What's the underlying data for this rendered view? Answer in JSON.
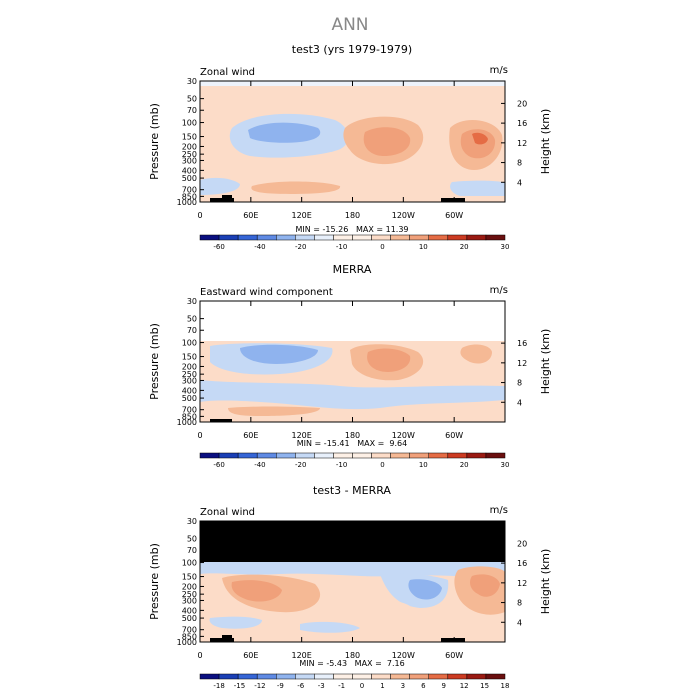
{
  "title": "ANN",
  "colors": {
    "panel_bg": "#ffffff",
    "mask": "#000000",
    "orange_pos": "#f0a07a",
    "peach_pos": "#fcdcc8",
    "light_blue_neg": "#c5d9f5",
    "blue_neg": "#8fb3ee"
  },
  "chart_data": [
    {
      "type": "heatmap",
      "title": "test3 (yrs 1979-1979)",
      "corner_left": "Zonal wind",
      "corner_right": "m/s",
      "ylabel": "Pressure (mb)",
      "ylabel_right": "Height (km)",
      "x_ticks": [
        "0",
        "60E",
        "120E",
        "180",
        "120W",
        "60W"
      ],
      "x_range": [
        0,
        360
      ],
      "y_ticks_pressure": [
        "30",
        "50",
        "70",
        "100",
        "150",
        "200",
        "250",
        "300",
        "400",
        "500",
        "700",
        "850",
        "1000"
      ],
      "y_ticks_height": [
        "20",
        "16",
        "12",
        "8",
        "4"
      ],
      "ylim_pressure": [
        1000,
        30
      ],
      "stats": "MIN = -15.26   MAX = 11.39",
      "colorbar_labels": [
        "-60",
        "-40",
        "-20",
        "-10",
        "0",
        "10",
        "20",
        "30"
      ]
    },
    {
      "type": "heatmap",
      "title": "MERRA",
      "corner_left": "Eastward wind component",
      "corner_right": "m/s",
      "ylabel": "Pressure (mb)",
      "ylabel_right": "Height (km)",
      "x_ticks": [
        "0",
        "60E",
        "120E",
        "180",
        "120W",
        "60W"
      ],
      "x_range": [
        0,
        360
      ],
      "y_ticks_pressure": [
        "30",
        "50",
        "70",
        "100",
        "150",
        "200",
        "250",
        "300",
        "400",
        "500",
        "700",
        "850",
        "1000"
      ],
      "y_ticks_height": [
        "16",
        "12",
        "8",
        "4"
      ],
      "ylim_pressure": [
        1000,
        30
      ],
      "stats": "MIN = -15.41   MAX =  9.64",
      "colorbar_labels": [
        "-60",
        "-40",
        "-20",
        "-10",
        "0",
        "10",
        "20",
        "30"
      ]
    },
    {
      "type": "heatmap",
      "title": "test3 - MERRA",
      "corner_left": "Zonal wind",
      "corner_right": "m/s",
      "ylabel": "Pressure (mb)",
      "ylabel_right": "Height (km)",
      "x_ticks": [
        "0",
        "60E",
        "120E",
        "180",
        "120W",
        "60W"
      ],
      "x_range": [
        0,
        360
      ],
      "y_ticks_pressure": [
        "30",
        "50",
        "70",
        "100",
        "150",
        "200",
        "250",
        "300",
        "400",
        "500",
        "700",
        "850",
        "1000"
      ],
      "y_ticks_height": [
        "20",
        "16",
        "12",
        "8",
        "4"
      ],
      "ylim_pressure": [
        1000,
        30
      ],
      "stats": "MIN = -5.43   MAX =  7.16",
      "colorbar_labels": [
        "-18",
        "-15",
        "-12",
        "-9",
        "-6",
        "-3",
        "-1",
        "0",
        "1",
        "3",
        "6",
        "9",
        "12",
        "15",
        "18"
      ]
    }
  ]
}
